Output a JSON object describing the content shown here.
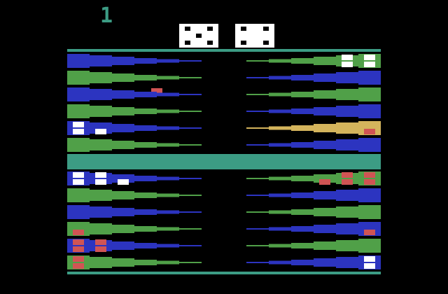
{
  "player": "1",
  "dice": [
    5,
    4
  ],
  "board": {
    "top_left": [
      null,
      null,
      null,
      null,
      {
        "color": "white",
        "count": 3
      },
      null
    ],
    "top_right": [
      {
        "color": "white",
        "count": 4
      },
      null,
      null,
      null,
      {
        "color": "red",
        "count": 1
      },
      null
    ],
    "bottom_left": [
      {
        "color": "white",
        "count": 5
      },
      null,
      null,
      {
        "color": "red",
        "count": 1
      },
      {
        "color": "red",
        "count": 4
      },
      {
        "color": "red",
        "count": 2
      }
    ],
    "bottom_right": [
      {
        "color": "red",
        "count": 5
      },
      null,
      null,
      {
        "color": "red",
        "count": 1
      },
      null,
      {
        "color": "white",
        "count": 2
      }
    ]
  }
}
